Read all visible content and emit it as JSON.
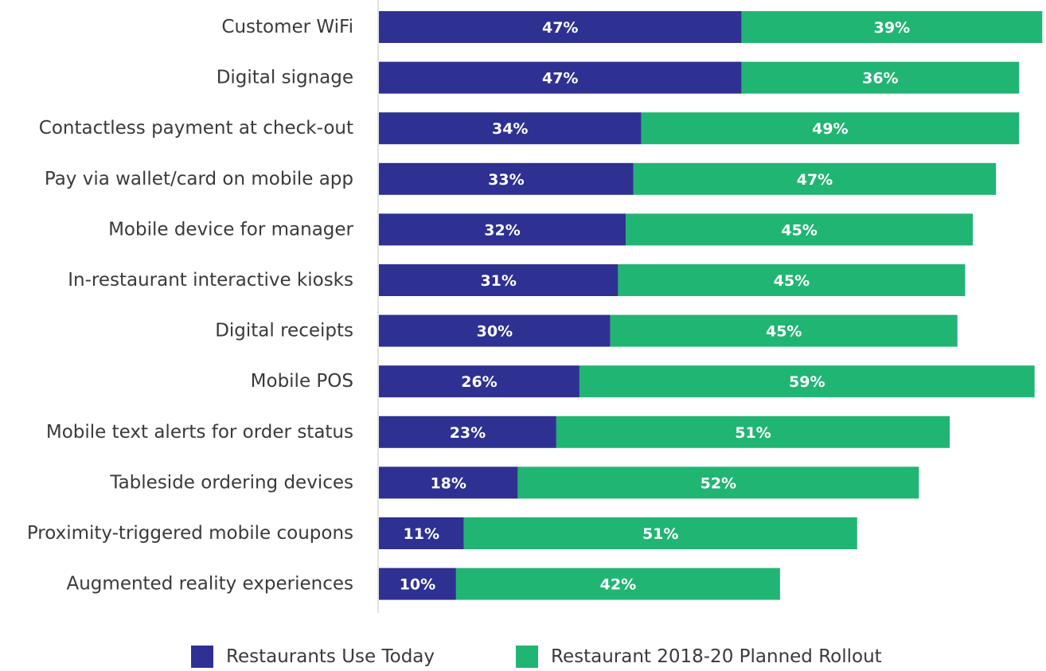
{
  "chart_data": {
    "type": "bar",
    "orientation": "horizontal",
    "stacked": true,
    "categories": [
      "Customer WiFi",
      "Digital signage",
      "Contactless payment at check-out",
      "Pay via wallet/card on mobile app",
      "Mobile device for manager",
      "In-restaurant interactive kiosks",
      "Digital receipts",
      "Mobile POS",
      "Mobile text alerts for order status",
      "Tableside ordering devices",
      "Proximity-triggered mobile coupons",
      "Augmented reality experiences"
    ],
    "series": [
      {
        "name": "Restaurants Use Today",
        "color": "#2e3192",
        "values": [
          47,
          47,
          34,
          33,
          32,
          31,
          30,
          26,
          23,
          18,
          11,
          10
        ],
        "labels": [
          "47%",
          "47%",
          "34%",
          "33%",
          "32%",
          "31%",
          "30%",
          "26%",
          "23%",
          "18%",
          "11%",
          "10%"
        ]
      },
      {
        "name": "Restaurant 2018-20 Planned Rollout",
        "color": "#21b573",
        "values": [
          39,
          36,
          49,
          47,
          45,
          45,
          45,
          59,
          51,
          52,
          51,
          42
        ],
        "labels": [
          "39%",
          "36%",
          "49%",
          "47%",
          "45%",
          "45%",
          "45%",
          "59%",
          "51%",
          "52%",
          "51%",
          "42%"
        ]
      }
    ],
    "legend_position": "bottom",
    "grid": false
  }
}
